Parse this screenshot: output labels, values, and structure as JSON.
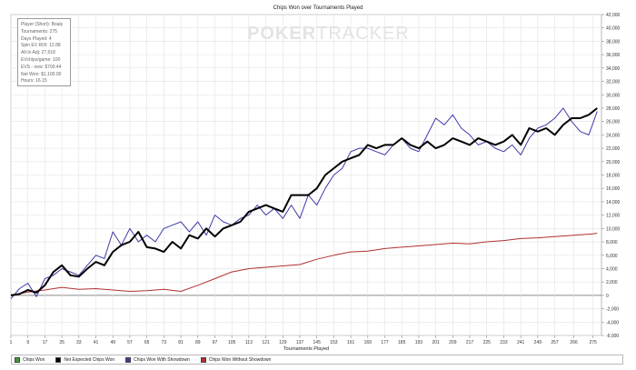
{
  "chart_data": {
    "type": "line",
    "title": "Chips Won over Tournaments Played",
    "xlabel": "Tournaments Played",
    "ylabel": "",
    "xlim": [
      1,
      279
    ],
    "ylim": [
      -6000,
      42000
    ],
    "x_ticks": [
      1,
      9,
      17,
      25,
      33,
      41,
      49,
      57,
      65,
      73,
      81,
      89,
      97,
      105,
      113,
      121,
      129,
      137,
      145,
      153,
      161,
      169,
      177,
      185,
      193,
      201,
      209,
      217,
      225,
      233,
      241,
      249,
      257,
      266,
      275
    ],
    "y_ticks": [
      -6000,
      -4000,
      -2000,
      0,
      2000,
      4000,
      6000,
      8000,
      10000,
      12000,
      14000,
      16000,
      18000,
      20000,
      22000,
      24000,
      26000,
      28000,
      30000,
      32000,
      34000,
      36000,
      38000,
      40000,
      42000
    ],
    "y_tick_labels": [
      "-6,000",
      "-4,000",
      "-2,000",
      "0",
      "2,000",
      "4,000",
      "6,000",
      "8,000",
      "10,000",
      "12,000",
      "14,000",
      "16,000",
      "18,000",
      "20,000",
      "22,000",
      "24,000",
      "26,000",
      "28,000",
      "30,000",
      "32,000",
      "34,000",
      "36,000",
      "38,000",
      "40,000",
      "42,000"
    ],
    "grid": true,
    "legend_position": "bottom",
    "series": [
      {
        "name": "Chips Won",
        "color": "#3a9a3a",
        "width": 1,
        "x": [],
        "values": []
      },
      {
        "name": "Net Expected Chips Won",
        "color": "#000000",
        "width": 2,
        "x": [
          1,
          5,
          9,
          13,
          17,
          21,
          25,
          29,
          33,
          37,
          41,
          45,
          49,
          53,
          57,
          61,
          65,
          69,
          73,
          77,
          81,
          85,
          89,
          93,
          97,
          101,
          105,
          109,
          113,
          117,
          121,
          125,
          129,
          133,
          137,
          141,
          145,
          149,
          153,
          157,
          161,
          165,
          169,
          173,
          177,
          181,
          185,
          189,
          193,
          197,
          201,
          205,
          209,
          213,
          217,
          221,
          225,
          229,
          233,
          237,
          241,
          245,
          249,
          253,
          257,
          261,
          265,
          269,
          273,
          277
        ],
        "values": [
          0,
          200,
          800,
          400,
          1500,
          3500,
          4500,
          3000,
          2800,
          4000,
          5000,
          4500,
          6500,
          7500,
          8000,
          9500,
          7200,
          7000,
          6500,
          8000,
          7000,
          9000,
          8500,
          10000,
          8800,
          10000,
          10500,
          11000,
          12500,
          13000,
          13500,
          13000,
          12500,
          15000,
          15000,
          15000,
          16000,
          18000,
          19000,
          20000,
          20500,
          21000,
          22500,
          22000,
          22500,
          22500,
          23500,
          22500,
          22000,
          23000,
          22000,
          22500,
          23500,
          23000,
          22500,
          23500,
          23000,
          22500,
          23000,
          24000,
          22500,
          25000,
          24500,
          25000,
          24000,
          25500,
          26500,
          26500,
          27000,
          28000
        ]
      },
      {
        "name": "Chips Won With Showdown",
        "color": "#3c3caa",
        "width": 1,
        "x": [
          1,
          5,
          9,
          13,
          17,
          21,
          25,
          29,
          33,
          37,
          41,
          45,
          49,
          53,
          57,
          61,
          65,
          69,
          73,
          77,
          81,
          85,
          89,
          93,
          97,
          101,
          105,
          109,
          113,
          117,
          121,
          125,
          129,
          133,
          137,
          141,
          145,
          149,
          153,
          157,
          161,
          165,
          169,
          173,
          177,
          181,
          185,
          189,
          193,
          197,
          201,
          205,
          209,
          213,
          217,
          221,
          225,
          229,
          233,
          237,
          241,
          245,
          249,
          253,
          257,
          261,
          265,
          269,
          273,
          277
        ],
        "values": [
          -500,
          1000,
          1800,
          -200,
          2500,
          3000,
          4000,
          3500,
          3000,
          4500,
          6000,
          5500,
          9500,
          7500,
          10000,
          8000,
          9000,
          8000,
          10000,
          10500,
          11000,
          9500,
          11000,
          9000,
          12000,
          11000,
          10500,
          11500,
          12000,
          13500,
          12000,
          13000,
          11500,
          13500,
          11500,
          15000,
          13500,
          16000,
          18000,
          19000,
          21500,
          22000,
          22000,
          21500,
          21000,
          22500,
          23500,
          22000,
          21500,
          24000,
          26500,
          25500,
          27000,
          25000,
          24000,
          22500,
          23000,
          22000,
          21500,
          22500,
          21000,
          23500,
          25000,
          25500,
          26500,
          28000,
          26000,
          24500,
          24000,
          27500
        ]
      },
      {
        "name": "Chips Won Without Showdown",
        "color": "#b03030",
        "width": 1,
        "x": [
          1,
          9,
          17,
          25,
          33,
          41,
          49,
          57,
          65,
          73,
          81,
          89,
          97,
          105,
          113,
          121,
          129,
          137,
          145,
          153,
          161,
          169,
          177,
          185,
          193,
          201,
          209,
          217,
          225,
          233,
          241,
          249,
          257,
          266,
          275,
          277
        ],
        "values": [
          0,
          500,
          800,
          1200,
          900,
          1000,
          800,
          600,
          700,
          900,
          600,
          1500,
          2500,
          3500,
          4000,
          4200,
          4400,
          4600,
          5400,
          6000,
          6500,
          6600,
          7000,
          7200,
          7400,
          7600,
          7800,
          7700,
          8000,
          8200,
          8500,
          8600,
          8800,
          9000,
          9200,
          9300
        ]
      }
    ]
  },
  "info_box": {
    "lines": [
      "Player (Short): Boaly",
      "Tournaments: 275",
      "Days Played: 4",
      "Spin EV ROI: 12.88",
      "All-In Adj: 27,618",
      "EVchips/game: 100",
      "EVS - new: $700.44",
      "Net Won: $1,100.00",
      "Hours: 16.15"
    ]
  },
  "watermark": {
    "part1": "POKER",
    "part2": "TRACKER"
  },
  "legend": {
    "items": [
      {
        "label": "Chips Won",
        "color": "#3a9a3a"
      },
      {
        "label": "Net Expected Chips Won",
        "color": "#000000"
      },
      {
        "label": "Chips Won With Showdown",
        "color": "#3c3caa"
      },
      {
        "label": "Chips Won Without Showdown",
        "color": "#b03030"
      }
    ]
  }
}
